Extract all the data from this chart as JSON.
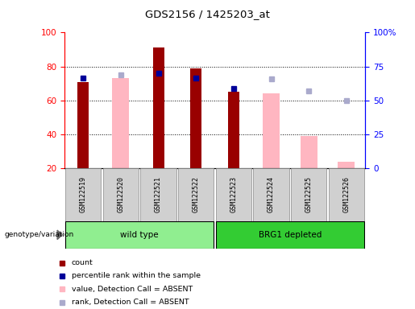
{
  "title": "GDS2156 / 1425203_at",
  "samples": [
    "GSM122519",
    "GSM122520",
    "GSM122521",
    "GSM122522",
    "GSM122523",
    "GSM122524",
    "GSM122525",
    "GSM122526"
  ],
  "groups": [
    {
      "label": "wild type",
      "indices": [
        0,
        1,
        2,
        3
      ],
      "color": "#90EE90"
    },
    {
      "label": "BRG1 depleted",
      "indices": [
        4,
        5,
        6,
        7
      ],
      "color": "#33CC33"
    }
  ],
  "count_values": [
    71,
    null,
    91,
    79,
    65,
    null,
    null,
    null
  ],
  "percentile_rank_values": [
    73,
    null,
    76,
    73,
    67,
    null,
    null,
    null
  ],
  "absent_value": [
    null,
    73,
    null,
    null,
    null,
    64,
    39,
    24
  ],
  "absent_rank": [
    null,
    69,
    null,
    null,
    null,
    66,
    57,
    50
  ],
  "ylim": [
    20,
    100
  ],
  "y2lim": [
    0,
    100
  ],
  "y_ticks": [
    20,
    40,
    60,
    80,
    100
  ],
  "y2_ticks": [
    0,
    25,
    50,
    75,
    100
  ],
  "y2_tick_labels": [
    "0",
    "25",
    "50",
    "75",
    "100%"
  ],
  "count_color": "#990000",
  "percentile_color": "#000099",
  "absent_value_color": "#FFB6C1",
  "absent_rank_color": "#AAAACC",
  "bar_width": 0.3,
  "absent_bar_width": 0.45,
  "genotype_label": "genotype/variation",
  "legend_items": [
    {
      "color": "#990000",
      "label": "count"
    },
    {
      "color": "#000099",
      "label": "percentile rank within the sample"
    },
    {
      "color": "#FFB6C1",
      "label": "value, Detection Call = ABSENT"
    },
    {
      "color": "#AAAACC",
      "label": "rank, Detection Call = ABSENT"
    }
  ]
}
